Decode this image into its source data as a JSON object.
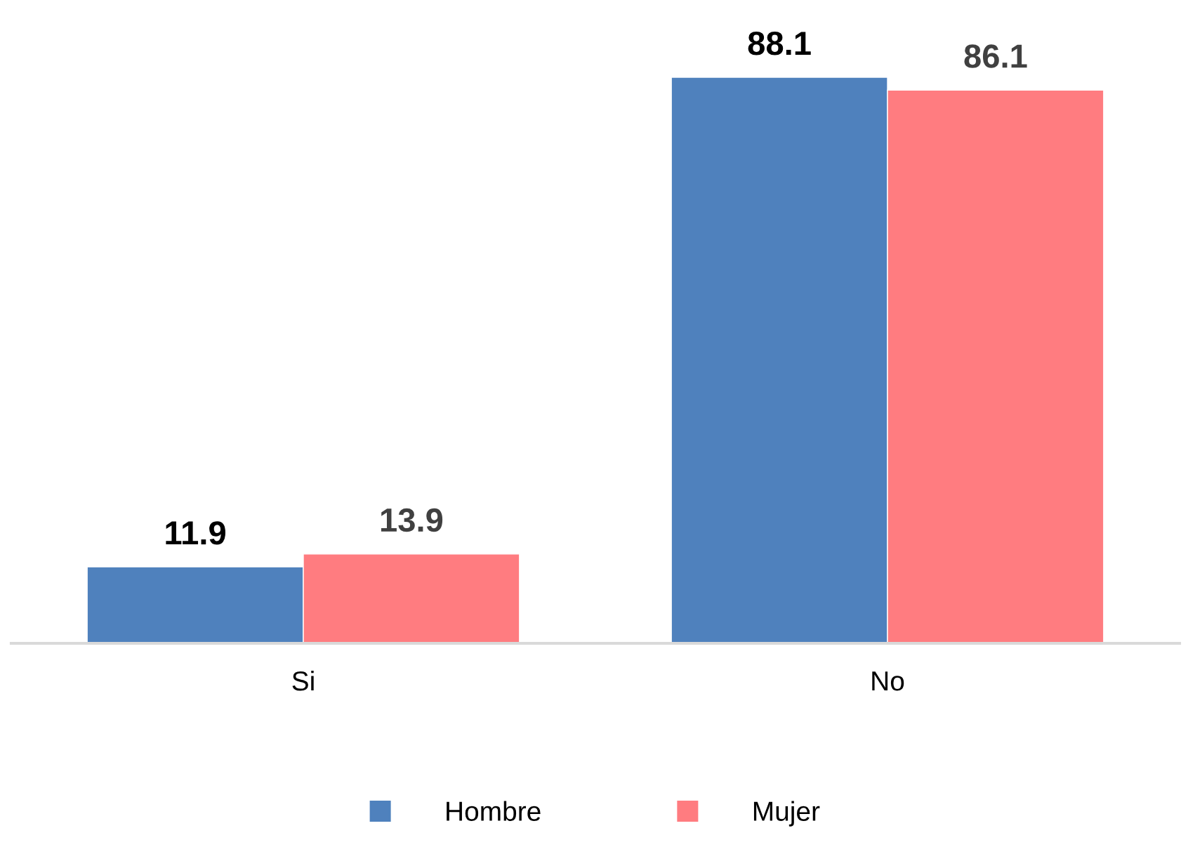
{
  "chart_data": {
    "type": "bar",
    "categories": [
      "Si",
      "No"
    ],
    "series": [
      {
        "name": "Hombre",
        "color": "#4f81bd",
        "values": [
          11.9,
          88.1
        ]
      },
      {
        "name": "Mujer",
        "color": "#ff7c80",
        "values": [
          13.9,
          86.1
        ]
      }
    ],
    "data_labels": true,
    "legend": "bottom",
    "grid": false
  }
}
